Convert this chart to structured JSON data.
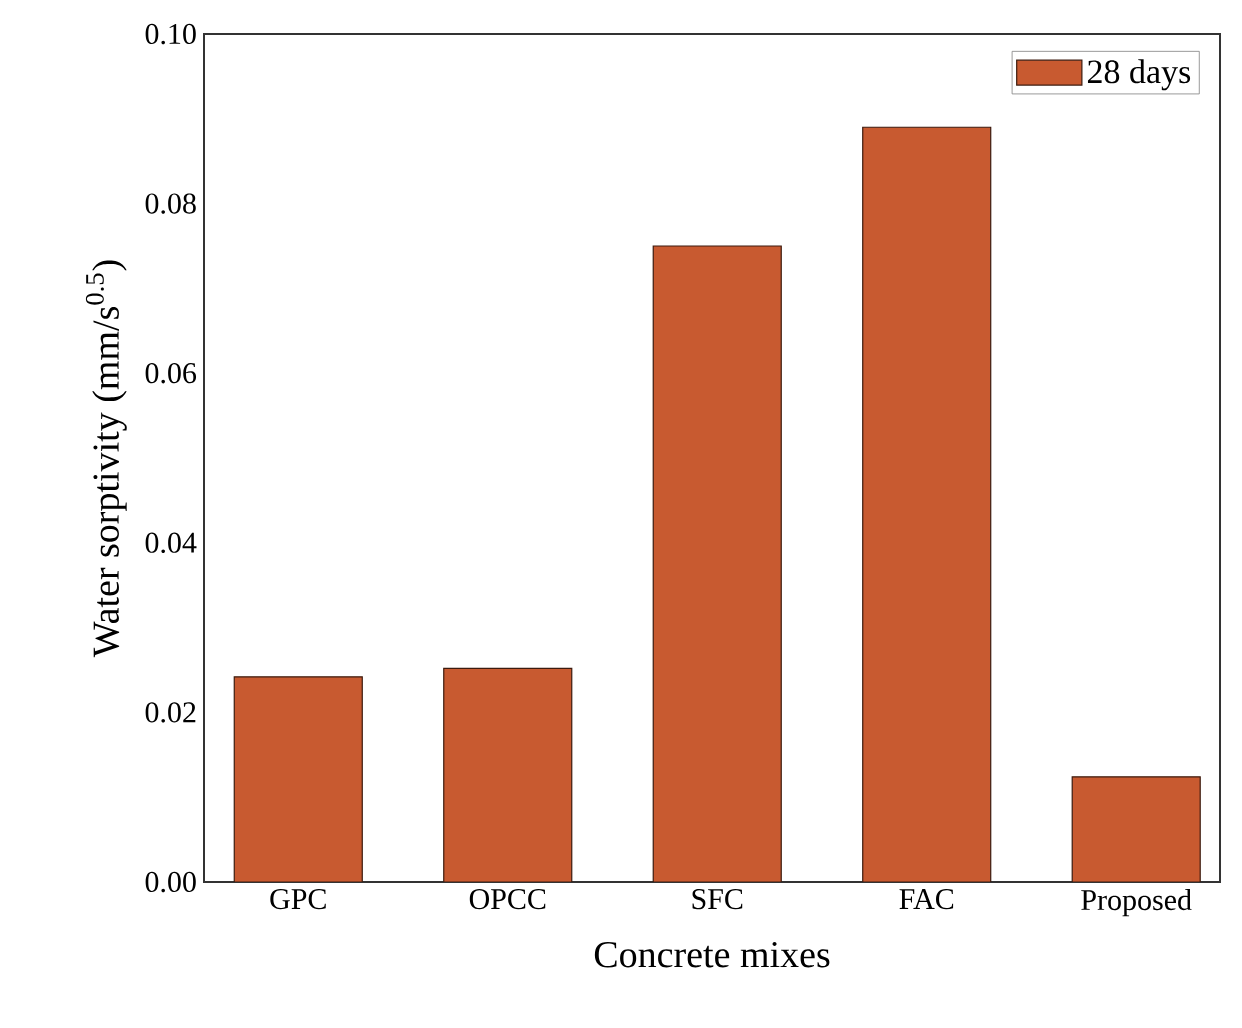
{
  "chart_data": {
    "type": "bar",
    "xlabel": "Concrete mixes",
    "ylabel": "Water sorptivity (mm/s$^{0.5}$)",
    "categories": [
      "GPC",
      "OPCC",
      "SFC",
      "FAC",
      "Proposed"
    ],
    "series": [
      {
        "name": "28 days",
        "color": "#c85a30",
        "values": [
          0.0242,
          0.0252,
          0.075,
          0.089,
          0.0124
        ]
      }
    ],
    "ylim": [
      0,
      0.1
    ],
    "yticks": [
      {
        "value": 0,
        "label": "0.00"
      },
      {
        "value": 0.02,
        "label": "0.02"
      },
      {
        "value": 0.04,
        "label": "0.04"
      },
      {
        "value": 0.06,
        "label": "0.06"
      },
      {
        "value": 0.08,
        "label": "0.08"
      },
      {
        "value": 0.1,
        "label": "0.10"
      }
    ],
    "legend": "top right",
    "grid": false
  }
}
